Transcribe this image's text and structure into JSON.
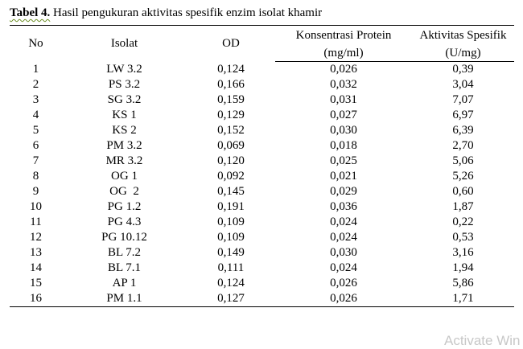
{
  "caption": {
    "label": "Tabel 4.",
    "text": " Hasil pengukuran aktivitas spesifik enzim isolat khamir"
  },
  "table": {
    "headers": {
      "no": "No",
      "isolat": "Isolat",
      "od": "OD",
      "konsentrasi_line1": "Konsentrasi Protein",
      "konsentrasi_line2": "(mg/ml)",
      "aktivitas_line1": "Aktivitas Spesifik",
      "aktivitas_line2": "(U/mg)"
    },
    "rows": [
      {
        "no": "1",
        "isolat": "LW 3.2",
        "od": "0,124",
        "konsentrasi": "0,026",
        "aktivitas": "0,39"
      },
      {
        "no": "2",
        "isolat": "PS 3.2",
        "od": "0,166",
        "konsentrasi": "0,032",
        "aktivitas": "3,04"
      },
      {
        "no": "3",
        "isolat": "SG 3.2",
        "od": "0,159",
        "konsentrasi": "0,031",
        "aktivitas": "7,07"
      },
      {
        "no": "4",
        "isolat": "KS 1",
        "od": "0,129",
        "konsentrasi": "0,027",
        "aktivitas": "6,97"
      },
      {
        "no": "5",
        "isolat": "KS 2",
        "od": "0,152",
        "konsentrasi": "0,030",
        "aktivitas": "6,39"
      },
      {
        "no": "6",
        "isolat": "PM 3.2",
        "od": "0,069",
        "konsentrasi": "0,018",
        "aktivitas": "2,70"
      },
      {
        "no": "7",
        "isolat": "MR 3.2",
        "od": "0,120",
        "konsentrasi": "0,025",
        "aktivitas": "5,06"
      },
      {
        "no": "8",
        "isolat": "OG 1",
        "od": "0,092",
        "konsentrasi": "0,021",
        "aktivitas": "5,26"
      },
      {
        "no": "9",
        "isolat": "OG  2",
        "od": "0,145",
        "konsentrasi": "0,029",
        "aktivitas": "0,60"
      },
      {
        "no": "10",
        "isolat": "PG 1.2",
        "od": "0,191",
        "konsentrasi": "0,036",
        "aktivitas": "1,87"
      },
      {
        "no": "11",
        "isolat": "PG 4.3",
        "od": "0,109",
        "konsentrasi": "0,024",
        "aktivitas": "0,22"
      },
      {
        "no": "12",
        "isolat": "PG 10.12",
        "od": "0,109",
        "konsentrasi": "0,024",
        "aktivitas": "0,53"
      },
      {
        "no": "13",
        "isolat": "BL 7.2",
        "od": "0,149",
        "konsentrasi": "0,030",
        "aktivitas": "3,16"
      },
      {
        "no": "14",
        "isolat": "BL 7.1",
        "od": "0,111",
        "konsentrasi": "0,024",
        "aktivitas": "1,94"
      },
      {
        "no": "15",
        "isolat": "AP 1",
        "od": "0,124",
        "konsentrasi": "0,026",
        "aktivitas": "5,86"
      },
      {
        "no": "16",
        "isolat": "PM 1.1",
        "od": "0,127",
        "konsentrasi": "0,026",
        "aktivitas": "1,71"
      }
    ]
  },
  "watermark": "Activate Win"
}
